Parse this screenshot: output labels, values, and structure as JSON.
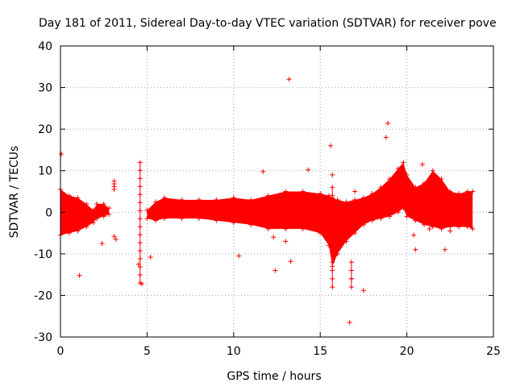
{
  "chart_data": {
    "type": "scatter",
    "title": "Day 181 of 2011, Sidereal Day-to-day VTEC variation (SDTVAR) for receiver pove",
    "xlabel": "GPS time / hours",
    "ylabel": "SDTVAR / TECUs",
    "xlim": [
      0,
      25
    ],
    "ylim": [
      -30,
      40
    ],
    "x_ticks": [
      "0",
      "5",
      "10",
      "15",
      "20",
      "25"
    ],
    "y_ticks": [
      "-30",
      "-20",
      "-10",
      "0",
      "10",
      "20",
      "30",
      "40"
    ],
    "grid": true,
    "marker": "+",
    "series_color": "#ff0000",
    "dense_envelope": [
      {
        "x": 0.0,
        "lo": -5.5,
        "hi": 5.5
      },
      {
        "x": 0.5,
        "lo": -5.0,
        "hi": 4.0
      },
      {
        "x": 1.0,
        "lo": -4.5,
        "hi": 3.5
      },
      {
        "x": 1.5,
        "lo": -3.5,
        "hi": 2.0
      },
      {
        "x": 1.9,
        "lo": -2.5,
        "hi": 0.5
      },
      {
        "x": 2.1,
        "lo": -1.5,
        "hi": 2.0
      },
      {
        "x": 2.5,
        "lo": -1.0,
        "hi": 2.0
      },
      {
        "x": 2.8,
        "lo": -0.5,
        "hi": 1.0
      },
      {
        "x": 5.0,
        "lo": -1.5,
        "hi": 0.5
      },
      {
        "x": 5.5,
        "lo": -2.0,
        "hi": 2.5
      },
      {
        "x": 6.0,
        "lo": -1.5,
        "hi": 3.5
      },
      {
        "x": 7.0,
        "lo": -1.5,
        "hi": 3.0
      },
      {
        "x": 8.0,
        "lo": -1.5,
        "hi": 3.0
      },
      {
        "x": 9.0,
        "lo": -2.0,
        "hi": 3.0
      },
      {
        "x": 10.0,
        "lo": -2.5,
        "hi": 3.5
      },
      {
        "x": 11.0,
        "lo": -3.0,
        "hi": 3.0
      },
      {
        "x": 12.0,
        "lo": -4.0,
        "hi": 4.0
      },
      {
        "x": 13.0,
        "lo": -4.0,
        "hi": 5.0
      },
      {
        "x": 14.0,
        "lo": -4.0,
        "hi": 5.0
      },
      {
        "x": 15.0,
        "lo": -5.0,
        "hi": 4.5
      },
      {
        "x": 15.5,
        "lo": -8.0,
        "hi": 4.0
      },
      {
        "x": 15.7,
        "lo": -13.0,
        "hi": 3.5
      },
      {
        "x": 16.0,
        "lo": -10.0,
        "hi": 3.0
      },
      {
        "x": 16.5,
        "lo": -7.0,
        "hi": 2.5
      },
      {
        "x": 17.0,
        "lo": -5.0,
        "hi": 3.0
      },
      {
        "x": 17.5,
        "lo": -3.0,
        "hi": 3.5
      },
      {
        "x": 18.0,
        "lo": -2.0,
        "hi": 4.5
      },
      {
        "x": 18.5,
        "lo": -1.5,
        "hi": 6.0
      },
      {
        "x": 19.0,
        "lo": -1.0,
        "hi": 8.0
      },
      {
        "x": 19.5,
        "lo": 0.0,
        "hi": 10.5
      },
      {
        "x": 19.8,
        "lo": 1.0,
        "hi": 12.0
      },
      {
        "x": 20.0,
        "lo": -1.0,
        "hi": 9.0
      },
      {
        "x": 20.5,
        "lo": -2.0,
        "hi": 6.0
      },
      {
        "x": 21.0,
        "lo": -3.0,
        "hi": 7.0
      },
      {
        "x": 21.5,
        "lo": -3.5,
        "hi": 10.0
      },
      {
        "x": 22.0,
        "lo": -4.0,
        "hi": 8.0
      },
      {
        "x": 22.5,
        "lo": -3.5,
        "hi": 5.0
      },
      {
        "x": 23.0,
        "lo": -3.5,
        "hi": 4.5
      },
      {
        "x": 23.5,
        "lo": -3.5,
        "hi": 5.0
      },
      {
        "x": 23.8,
        "lo": -4.0,
        "hi": 5.0
      }
    ],
    "vertical_streaks": [
      {
        "x": 3.1,
        "lo": 5.5,
        "hi": 7.5
      },
      {
        "x": 4.6,
        "lo": -17.0,
        "hi": 12.0
      },
      {
        "x": 15.7,
        "lo": -18.0,
        "hi": 6.0
      },
      {
        "x": 16.8,
        "lo": -18.0,
        "hi": -12.0
      }
    ],
    "outliers": [
      {
        "x": 0.05,
        "y": 14.0
      },
      {
        "x": 1.1,
        "y": -15.2
      },
      {
        "x": 2.4,
        "y": -7.5
      },
      {
        "x": 3.2,
        "y": -6.5
      },
      {
        "x": 3.1,
        "y": -5.8
      },
      {
        "x": 4.5,
        "y": -12.5
      },
      {
        "x": 4.7,
        "y": -17.2
      },
      {
        "x": 5.2,
        "y": -10.8
      },
      {
        "x": 10.3,
        "y": -10.5
      },
      {
        "x": 11.7,
        "y": 9.8
      },
      {
        "x": 12.4,
        "y": -14.0
      },
      {
        "x": 13.2,
        "y": 32.0
      },
      {
        "x": 13.3,
        "y": -11.8
      },
      {
        "x": 12.3,
        "y": -6.0
      },
      {
        "x": 13.0,
        "y": -7.0
      },
      {
        "x": 14.3,
        "y": 10.2
      },
      {
        "x": 15.6,
        "y": 16.0
      },
      {
        "x": 15.7,
        "y": 9.0
      },
      {
        "x": 16.7,
        "y": -26.5
      },
      {
        "x": 16.8,
        "y": -16.0
      },
      {
        "x": 17.5,
        "y": -18.8
      },
      {
        "x": 18.8,
        "y": 18.0
      },
      {
        "x": 18.9,
        "y": 21.4
      },
      {
        "x": 20.5,
        "y": -9.0
      },
      {
        "x": 20.4,
        "y": -5.5
      },
      {
        "x": 20.9,
        "y": 11.5
      },
      {
        "x": 21.3,
        "y": -4.0
      },
      {
        "x": 22.2,
        "y": -9.0
      },
      {
        "x": 22.5,
        "y": -4.5
      },
      {
        "x": 16.2,
        "y": -7.0
      },
      {
        "x": 17.0,
        "y": 5.0
      }
    ]
  }
}
